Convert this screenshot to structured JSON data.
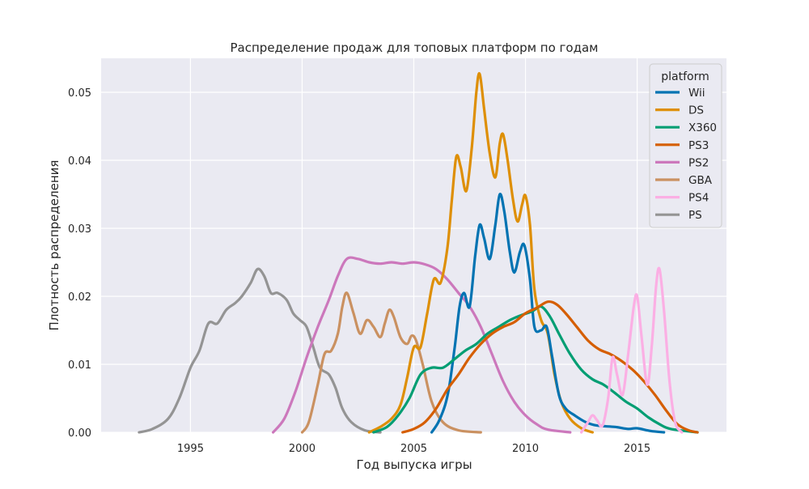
{
  "chart_data": {
    "type": "line",
    "title": "Распределение продаж для топовых платформ по годам",
    "xlabel": "Год выпуска игры",
    "ylabel": "Плотность распределения",
    "xlim": [
      1991,
      2019
    ],
    "ylim": [
      0,
      0.055
    ],
    "x_ticks": [
      1995,
      2000,
      2005,
      2010,
      2015
    ],
    "y_ticks": [
      0.0,
      0.01,
      0.02,
      0.03,
      0.04,
      0.05
    ],
    "x_tick_labels": [
      "1995",
      "2000",
      "2005",
      "2010",
      "2015"
    ],
    "y_tick_labels": [
      "0.00",
      "0.01",
      "0.02",
      "0.03",
      "0.04",
      "0.05"
    ],
    "grid": true,
    "background": "#eaeaf2",
    "legend": {
      "title": "platform",
      "position": "top-right"
    },
    "series": [
      {
        "name": "PS",
        "color": "#949494",
        "points": [
          [
            1992.7,
            0
          ],
          [
            1993.3,
            0.0005
          ],
          [
            1994,
            0.002
          ],
          [
            1994.5,
            0.005
          ],
          [
            1995,
            0.0095
          ],
          [
            1995.4,
            0.012
          ],
          [
            1995.8,
            0.016
          ],
          [
            1996.2,
            0.016
          ],
          [
            1996.6,
            0.018
          ],
          [
            1997,
            0.019
          ],
          [
            1997.3,
            0.02
          ],
          [
            1997.7,
            0.022
          ],
          [
            1998,
            0.024
          ],
          [
            1998.3,
            0.023
          ],
          [
            1998.6,
            0.0205
          ],
          [
            1998.9,
            0.0205
          ],
          [
            1999.3,
            0.0195
          ],
          [
            1999.6,
            0.0175
          ],
          [
            1999.9,
            0.0165
          ],
          [
            2000.2,
            0.0155
          ],
          [
            2000.5,
            0.0125
          ],
          [
            2000.8,
            0.0095
          ],
          [
            2001.2,
            0.0085
          ],
          [
            2001.5,
            0.0065
          ],
          [
            2001.8,
            0.0035
          ],
          [
            2002.2,
            0.0015
          ],
          [
            2002.8,
            0.0003
          ],
          [
            2003.5,
            0
          ]
        ]
      },
      {
        "name": "GBA",
        "color": "#ca9161",
        "points": [
          [
            2000,
            0
          ],
          [
            2000.3,
            0.0015
          ],
          [
            2000.7,
            0.007
          ],
          [
            2001,
            0.0115
          ],
          [
            2001.3,
            0.012
          ],
          [
            2001.6,
            0.0145
          ],
          [
            2001.8,
            0.0185
          ],
          [
            2002,
            0.0205
          ],
          [
            2002.3,
            0.0175
          ],
          [
            2002.6,
            0.0145
          ],
          [
            2002.9,
            0.0165
          ],
          [
            2003.2,
            0.0155
          ],
          [
            2003.5,
            0.014
          ],
          [
            2003.7,
            0.016
          ],
          [
            2003.9,
            0.018
          ],
          [
            2004.1,
            0.017
          ],
          [
            2004.4,
            0.014
          ],
          [
            2004.7,
            0.013
          ],
          [
            2004.9,
            0.0142
          ],
          [
            2005.1,
            0.0135
          ],
          [
            2005.4,
            0.01
          ],
          [
            2005.8,
            0.0045
          ],
          [
            2006.3,
            0.0015
          ],
          [
            2007,
            0.0003
          ],
          [
            2008,
            0
          ]
        ]
      },
      {
        "name": "PS2",
        "color": "#cc78bc",
        "points": [
          [
            1998.7,
            0
          ],
          [
            1999.2,
            0.002
          ],
          [
            1999.7,
            0.006
          ],
          [
            2000.2,
            0.011
          ],
          [
            2000.7,
            0.0155
          ],
          [
            2001.2,
            0.0195
          ],
          [
            2001.6,
            0.023
          ],
          [
            2002,
            0.0255
          ],
          [
            2002.5,
            0.0255
          ],
          [
            2003,
            0.025
          ],
          [
            2003.5,
            0.0248
          ],
          [
            2004,
            0.025
          ],
          [
            2004.5,
            0.0248
          ],
          [
            2005,
            0.025
          ],
          [
            2005.5,
            0.0247
          ],
          [
            2006,
            0.024
          ],
          [
            2006.5,
            0.0225
          ],
          [
            2007,
            0.0205
          ],
          [
            2007.5,
            0.0185
          ],
          [
            2008,
            0.0155
          ],
          [
            2008.5,
            0.0115
          ],
          [
            2009,
            0.0075
          ],
          [
            2009.5,
            0.0045
          ],
          [
            2010,
            0.0025
          ],
          [
            2010.5,
            0.0012
          ],
          [
            2011,
            0.0004
          ],
          [
            2012,
            0
          ]
        ]
      },
      {
        "name": "DS",
        "color": "#de8f05",
        "points": [
          [
            2003,
            0
          ],
          [
            2003.5,
            0.0008
          ],
          [
            2004,
            0.002
          ],
          [
            2004.4,
            0.004
          ],
          [
            2004.7,
            0.008
          ],
          [
            2005,
            0.0125
          ],
          [
            2005.3,
            0.0125
          ],
          [
            2005.6,
            0.0175
          ],
          [
            2005.9,
            0.0225
          ],
          [
            2006.2,
            0.022
          ],
          [
            2006.5,
            0.027
          ],
          [
            2006.7,
            0.034
          ],
          [
            2006.9,
            0.0405
          ],
          [
            2007.1,
            0.039
          ],
          [
            2007.35,
            0.0355
          ],
          [
            2007.6,
            0.042
          ],
          [
            2007.8,
            0.05
          ],
          [
            2007.95,
            0.0527
          ],
          [
            2008.15,
            0.0475
          ],
          [
            2008.4,
            0.041
          ],
          [
            2008.65,
            0.0375
          ],
          [
            2008.85,
            0.0425
          ],
          [
            2009,
            0.0438
          ],
          [
            2009.2,
            0.04
          ],
          [
            2009.45,
            0.034
          ],
          [
            2009.65,
            0.031
          ],
          [
            2009.85,
            0.0335
          ],
          [
            2010,
            0.0348
          ],
          [
            2010.2,
            0.0305
          ],
          [
            2010.4,
            0.021
          ],
          [
            2010.7,
            0.0165
          ],
          [
            2011,
            0.0145
          ],
          [
            2011.3,
            0.0085
          ],
          [
            2011.6,
            0.0045
          ],
          [
            2012,
            0.002
          ],
          [
            2012.5,
            0.0006
          ],
          [
            2013,
            0
          ]
        ]
      },
      {
        "name": "Wii",
        "color": "#0173b2",
        "points": [
          [
            2005.8,
            0
          ],
          [
            2006.1,
            0.0015
          ],
          [
            2006.4,
            0.004
          ],
          [
            2006.6,
            0.007
          ],
          [
            2006.85,
            0.013
          ],
          [
            2007.05,
            0.0185
          ],
          [
            2007.25,
            0.0205
          ],
          [
            2007.5,
            0.0185
          ],
          [
            2007.75,
            0.026
          ],
          [
            2007.95,
            0.0305
          ],
          [
            2008.15,
            0.0285
          ],
          [
            2008.4,
            0.0255
          ],
          [
            2008.65,
            0.0305
          ],
          [
            2008.85,
            0.035
          ],
          [
            2009.05,
            0.0325
          ],
          [
            2009.3,
            0.0265
          ],
          [
            2009.5,
            0.0235
          ],
          [
            2009.75,
            0.0265
          ],
          [
            2009.95,
            0.0275
          ],
          [
            2010.2,
            0.0225
          ],
          [
            2010.4,
            0.0155
          ],
          [
            2010.7,
            0.015
          ],
          [
            2010.95,
            0.0155
          ],
          [
            2011.2,
            0.011
          ],
          [
            2011.5,
            0.0055
          ],
          [
            2011.8,
            0.0035
          ],
          [
            2012.2,
            0.0025
          ],
          [
            2012.7,
            0.0015
          ],
          [
            2013.2,
            0.001
          ],
          [
            2014,
            0.0008
          ],
          [
            2014.6,
            0.0005
          ],
          [
            2015,
            0.0006
          ],
          [
            2015.6,
            0.0002
          ],
          [
            2016.2,
            0
          ]
        ]
      },
      {
        "name": "X360",
        "color": "#029e73",
        "points": [
          [
            2003.2,
            0
          ],
          [
            2003.8,
            0.0008
          ],
          [
            2004.3,
            0.0025
          ],
          [
            2004.8,
            0.005
          ],
          [
            2005.3,
            0.0085
          ],
          [
            2005.8,
            0.0095
          ],
          [
            2006.3,
            0.0095
          ],
          [
            2006.8,
            0.0107
          ],
          [
            2007.3,
            0.012
          ],
          [
            2007.8,
            0.013
          ],
          [
            2008.3,
            0.0145
          ],
          [
            2008.8,
            0.0155
          ],
          [
            2009.3,
            0.0165
          ],
          [
            2009.8,
            0.0172
          ],
          [
            2010.3,
            0.0178
          ],
          [
            2010.7,
            0.0185
          ],
          [
            2011.1,
            0.017
          ],
          [
            2011.5,
            0.0145
          ],
          [
            2012,
            0.0115
          ],
          [
            2012.5,
            0.0092
          ],
          [
            2013,
            0.0078
          ],
          [
            2013.5,
            0.007
          ],
          [
            2014,
            0.0058
          ],
          [
            2014.5,
            0.0045
          ],
          [
            2015,
            0.0035
          ],
          [
            2015.5,
            0.0022
          ],
          [
            2016,
            0.0012
          ],
          [
            2016.5,
            0.0005
          ],
          [
            2017.7,
            0
          ]
        ]
      },
      {
        "name": "PS3",
        "color": "#d55e00",
        "points": [
          [
            2004.5,
            0
          ],
          [
            2005,
            0.0005
          ],
          [
            2005.5,
            0.0015
          ],
          [
            2006,
            0.0035
          ],
          [
            2006.5,
            0.0063
          ],
          [
            2007,
            0.0085
          ],
          [
            2007.5,
            0.011
          ],
          [
            2008,
            0.013
          ],
          [
            2008.5,
            0.0145
          ],
          [
            2009,
            0.0155
          ],
          [
            2009.5,
            0.0162
          ],
          [
            2010,
            0.0175
          ],
          [
            2010.5,
            0.0183
          ],
          [
            2011,
            0.0192
          ],
          [
            2011.4,
            0.0188
          ],
          [
            2011.8,
            0.0175
          ],
          [
            2012.3,
            0.0155
          ],
          [
            2012.8,
            0.0135
          ],
          [
            2013.3,
            0.0122
          ],
          [
            2013.8,
            0.0115
          ],
          [
            2014.3,
            0.0105
          ],
          [
            2014.8,
            0.0092
          ],
          [
            2015.3,
            0.0075
          ],
          [
            2015.8,
            0.0055
          ],
          [
            2016.3,
            0.0032
          ],
          [
            2016.8,
            0.0012
          ],
          [
            2017.3,
            0.0003
          ],
          [
            2017.7,
            0
          ]
        ]
      },
      {
        "name": "PS4",
        "color": "#fbafe4",
        "points": [
          [
            2012.5,
            0
          ],
          [
            2012.8,
            0.0015
          ],
          [
            2013,
            0.0025
          ],
          [
            2013.2,
            0.0018
          ],
          [
            2013.45,
            0.001
          ],
          [
            2013.7,
            0.005
          ],
          [
            2013.9,
            0.011
          ],
          [
            2014.1,
            0.0085
          ],
          [
            2014.35,
            0.0055
          ],
          [
            2014.6,
            0.0115
          ],
          [
            2014.85,
            0.0185
          ],
          [
            2015,
            0.02
          ],
          [
            2015.2,
            0.014
          ],
          [
            2015.45,
            0.007
          ],
          [
            2015.65,
            0.0125
          ],
          [
            2015.85,
            0.0215
          ],
          [
            2016,
            0.024
          ],
          [
            2016.2,
            0.018
          ],
          [
            2016.45,
            0.0075
          ],
          [
            2016.7,
            0.0015
          ],
          [
            2017,
            0
          ]
        ]
      }
    ]
  }
}
